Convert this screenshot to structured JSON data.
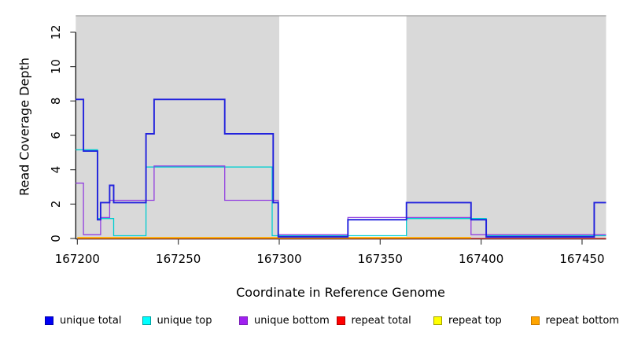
{
  "chart_data": {
    "type": "line",
    "subtype": "step-coverage",
    "title": "",
    "xlabel": "Coordinate in Reference Genome",
    "ylabel": "Read Coverage Depth",
    "xlim": [
      167199.2,
      167461.9
    ],
    "ylim": [
      0,
      12.96
    ],
    "x_ticks": [
      167200,
      167250,
      167300,
      167350,
      167400,
      167450
    ],
    "y_ticks": [
      0,
      2,
      4,
      6,
      8,
      10,
      12
    ],
    "grid": "off",
    "background": "#ffffff",
    "region_fill": "#d9d9d9",
    "frame_color": "#9a9a9a",
    "axis_color": "#000000",
    "tick_color": "#404040",
    "shaded_regions": [
      {
        "start": 167199.2,
        "end": 167300
      },
      {
        "start": 167363,
        "end": 167461.9
      }
    ],
    "series": [
      {
        "name": "repeat total",
        "color": "#e02a2a",
        "width": 1.3,
        "offset": 0.0,
        "steps": [
          [
            167200,
            0
          ],
          [
            167461.9,
            null
          ]
        ]
      },
      {
        "name": "repeat top",
        "color": "#ffff00",
        "width": 1.1,
        "offset": 0.025,
        "steps": [
          [
            167200,
            0
          ],
          [
            167395,
            null
          ]
        ]
      },
      {
        "name": "repeat bottom",
        "color": "#ffa500",
        "width": 1.6,
        "offset": 0.05,
        "steps": [
          [
            167200,
            0
          ],
          [
            167395,
            null
          ]
        ]
      },
      {
        "name": "unique top",
        "color": "#00ced1",
        "width": 1.3,
        "offset": 0.16,
        "steps": [
          [
            167199.2,
            5
          ],
          [
            167210,
            1
          ],
          [
            167218,
            0
          ],
          [
            167234,
            4
          ],
          [
            167296.5,
            0
          ],
          [
            167363,
            1
          ],
          [
            167402.5,
            0
          ],
          [
            167461.9,
            null
          ]
        ]
      },
      {
        "name": "unique bottom",
        "color": "#9340e0",
        "width": 1.3,
        "offset": 0.22,
        "steps": [
          [
            167199.2,
            3
          ],
          [
            167203,
            0
          ],
          [
            167211.5,
            1
          ],
          [
            167216,
            2
          ],
          [
            167238,
            4
          ],
          [
            167273,
            2
          ],
          [
            167299.5,
            0
          ],
          [
            167334,
            1
          ],
          [
            167395,
            0
          ],
          [
            167461.9,
            null
          ]
        ]
      },
      {
        "name": "unique total",
        "color": "#2222dd",
        "width": 1.9,
        "offset": 0.09,
        "steps": [
          [
            167199.2,
            8
          ],
          [
            167203,
            5
          ],
          [
            167210,
            1
          ],
          [
            167211.5,
            2
          ],
          [
            167216,
            3
          ],
          [
            167218,
            2
          ],
          [
            167234,
            6
          ],
          [
            167238,
            8
          ],
          [
            167273,
            6
          ],
          [
            167297,
            2
          ],
          [
            167299.5,
            0
          ],
          [
            167334,
            1
          ],
          [
            167363,
            2
          ],
          [
            167395,
            1
          ],
          [
            167402.5,
            0
          ],
          [
            167456,
            2
          ],
          [
            167461.9,
            null
          ]
        ]
      }
    ]
  },
  "legend": {
    "items": [
      {
        "label": "unique total",
        "fill": "#0000f5",
        "border": "#0000a8"
      },
      {
        "label": "unique top",
        "fill": "#00ffff",
        "border": "#00a0a0"
      },
      {
        "label": "unique bottom",
        "fill": "#a020f0",
        "border": "#7a1fb8"
      },
      {
        "label": "repeat total",
        "fill": "#ff0000",
        "border": "#b00000"
      },
      {
        "label": "repeat top",
        "fill": "#ffff00",
        "border": "#a0a000"
      },
      {
        "label": "repeat bottom",
        "fill": "#ffa500",
        "border": "#c87800"
      }
    ]
  }
}
